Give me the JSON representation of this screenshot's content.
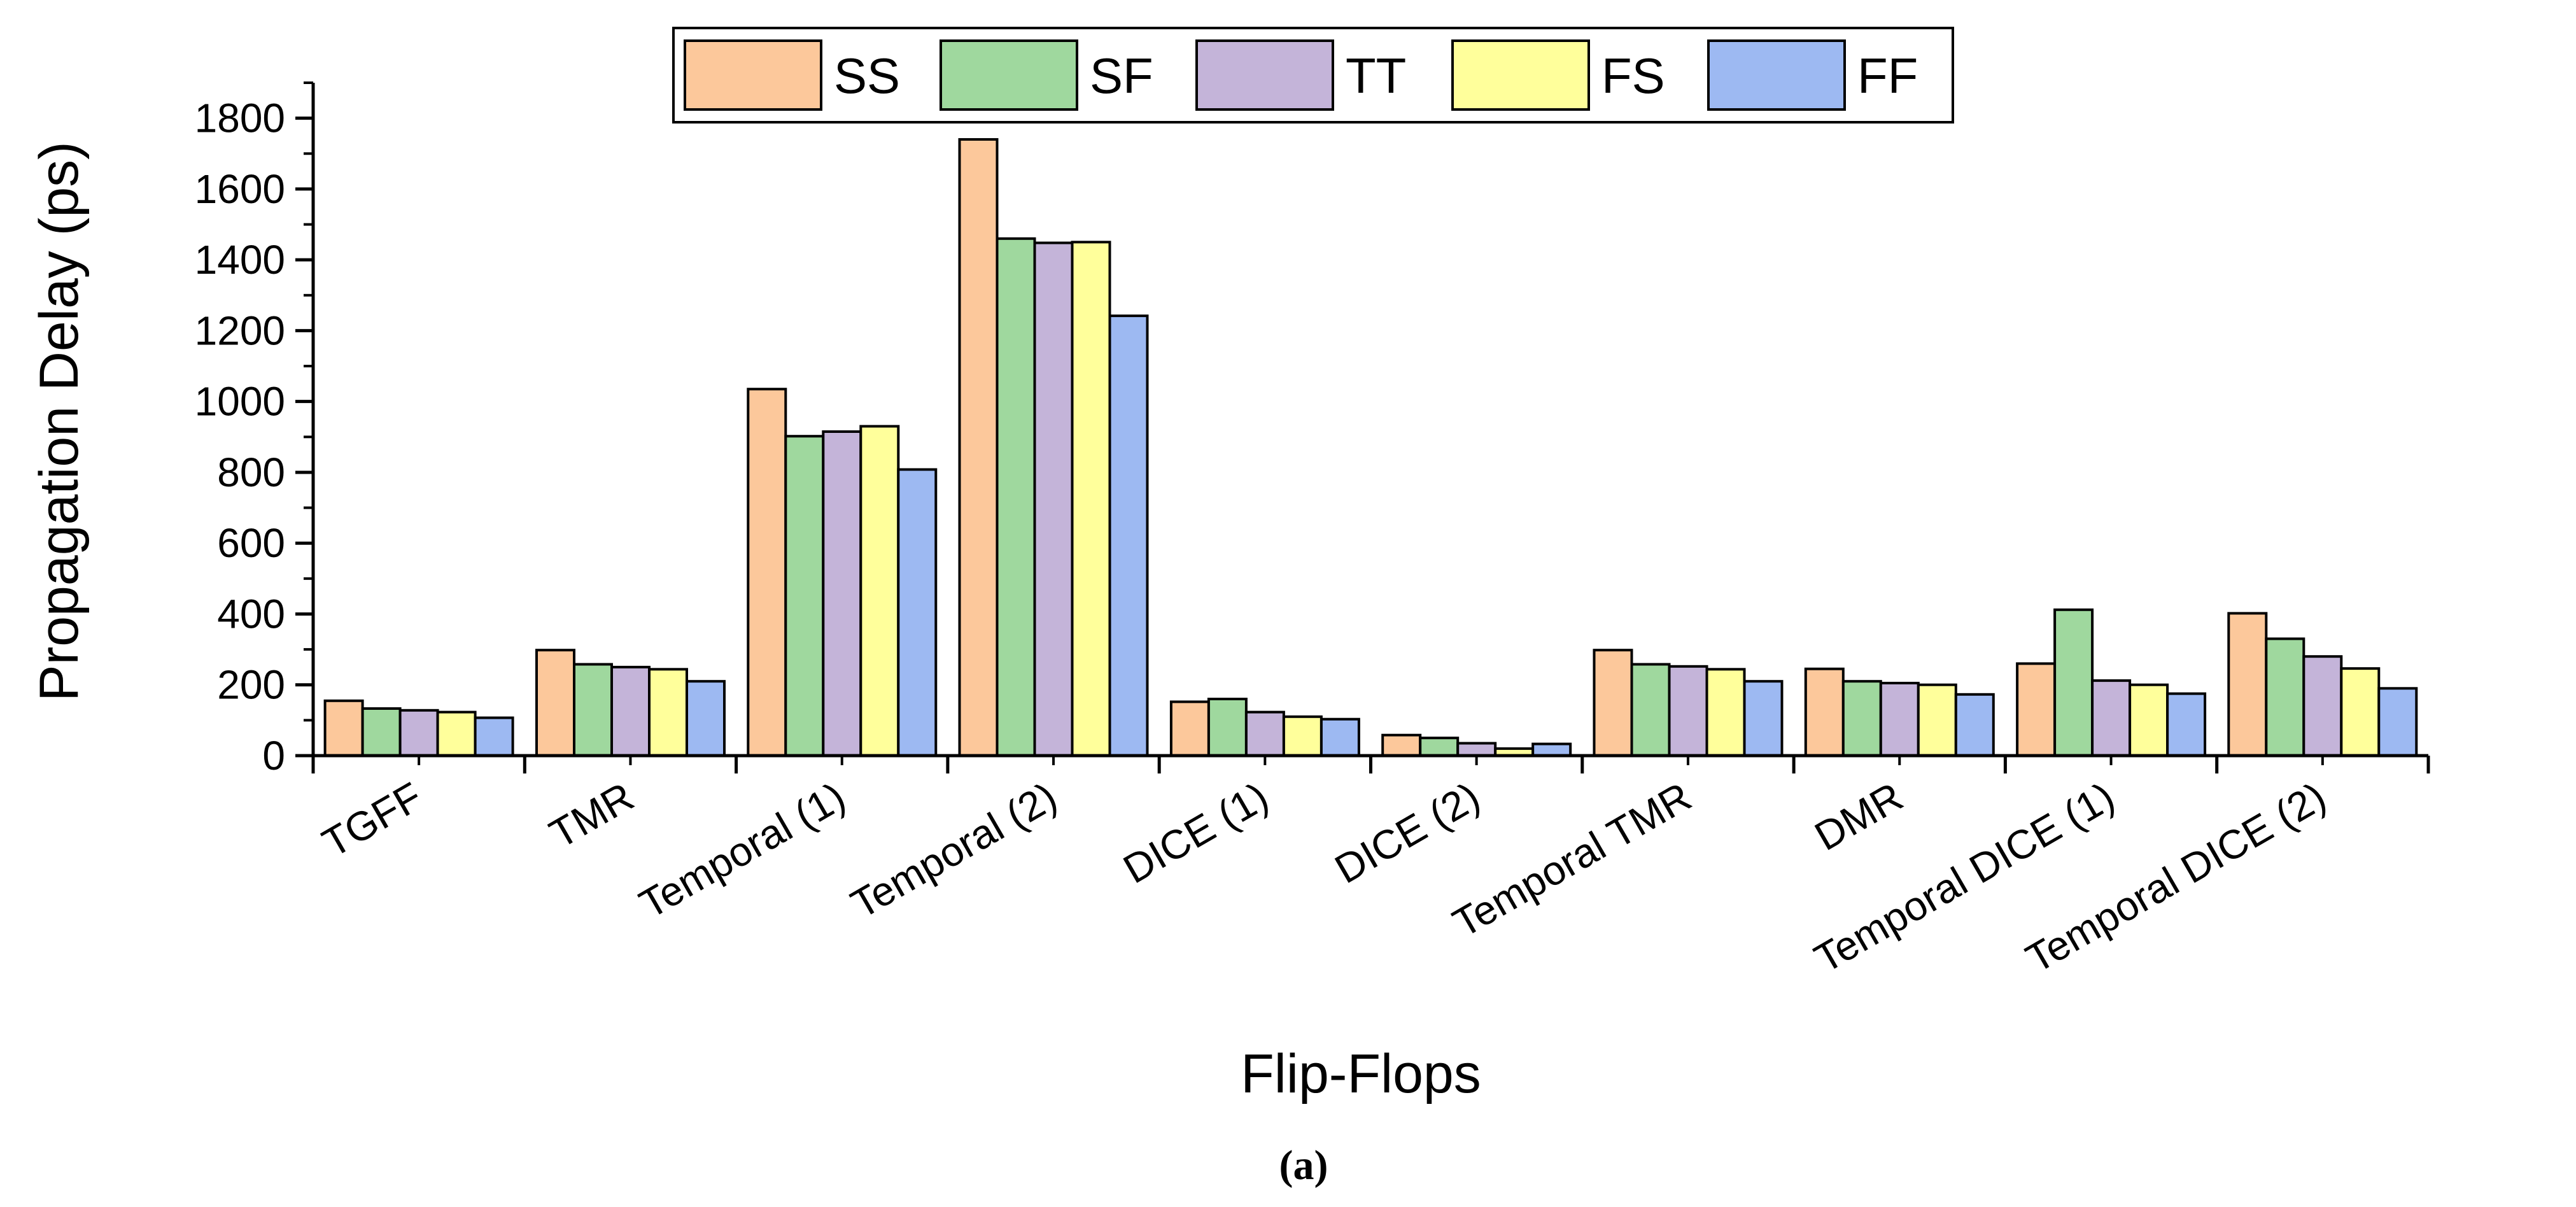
{
  "chart_data": {
    "type": "bar",
    "title": "",
    "xlabel": "Flip-Flops",
    "ylabel": "Propagation Delay (ps)",
    "caption": "(a)",
    "ylim": [
      0,
      1900
    ],
    "yticks": [
      0,
      200,
      400,
      600,
      800,
      1000,
      1200,
      1400,
      1600,
      1800
    ],
    "grid": false,
    "legend_position": "top-center",
    "categories": [
      "TGFF",
      "TMR",
      "Temporal (1)",
      "Temporal (2)",
      "DICE (1)",
      "DICE (2)",
      "Temporal TMR",
      "DMR",
      "Temporal DICE (1)",
      "Temporal DICE (2)"
    ],
    "series": [
      {
        "name": "SS",
        "color": "#FCC89B",
        "values": [
          155,
          298,
          1035,
          1740,
          152,
          58,
          298,
          245,
          260,
          402
        ]
      },
      {
        "name": "SF",
        "color": "#9FD89E",
        "values": [
          133,
          258,
          902,
          1460,
          160,
          50,
          258,
          210,
          412,
          330
        ]
      },
      {
        "name": "TT",
        "color": "#C4B4D9",
        "values": [
          128,
          250,
          915,
          1448,
          123,
          35,
          252,
          205,
          212,
          280
        ]
      },
      {
        "name": "FS",
        "color": "#FFFF9B",
        "values": [
          123,
          244,
          930,
          1450,
          110,
          20,
          244,
          200,
          200,
          246
        ]
      },
      {
        "name": "FF",
        "color": "#9DB9F2",
        "values": [
          107,
          210,
          808,
          1242,
          103,
          33,
          210,
          173,
          175,
          190
        ]
      }
    ]
  }
}
